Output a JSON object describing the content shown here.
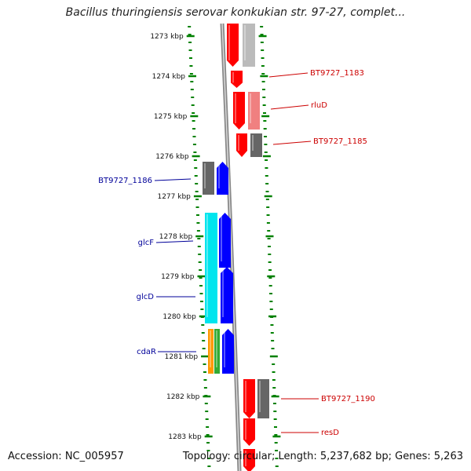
{
  "title": "Bacillus thuringiensis serovar konkukian str. 97-27, complet...",
  "accession": "Accession: NC_005957",
  "summary": "Topology: circular; Length: 5,237,682 bp; Genes: 5,263",
  "colors": {
    "forward_gene": "#ff0000",
    "reverse_gene": "#0000ff",
    "hypothetical": "#666666",
    "forward_label": "#cc0000",
    "reverse_label": "#000099",
    "tick": "#008000",
    "chromosome": "#888888"
  },
  "ticks": [
    {
      "kbp": 1273,
      "label": "1273 kbp"
    },
    {
      "kbp": 1274,
      "label": "1274 kbp"
    },
    {
      "kbp": 1275,
      "label": "1275 kbp"
    },
    {
      "kbp": 1276,
      "label": "1276 kbp"
    },
    {
      "kbp": 1277,
      "label": "1277 kbp"
    },
    {
      "kbp": 1278,
      "label": "1278 kbp"
    },
    {
      "kbp": 1279,
      "label": "1279 kbp"
    },
    {
      "kbp": 1280,
      "label": "1280 kbp"
    },
    {
      "kbp": 1281,
      "label": "1281 kbp"
    },
    {
      "kbp": 1282,
      "label": "1282 kbp"
    },
    {
      "kbp": 1283,
      "label": "1283 kbp"
    }
  ],
  "gene_labels": [
    {
      "text": "BT9727_1183",
      "strand": "forward"
    },
    {
      "text": "rluD",
      "strand": "forward"
    },
    {
      "text": "BT9727_1185",
      "strand": "forward"
    },
    {
      "text": "BT9727_1186",
      "strand": "reverse"
    },
    {
      "text": "glcF",
      "strand": "reverse"
    },
    {
      "text": "glcD",
      "strand": "reverse"
    },
    {
      "text": "cdaR",
      "strand": "reverse"
    },
    {
      "text": "BT9727_1190",
      "strand": "forward"
    },
    {
      "text": "resD",
      "strand": "forward"
    }
  ]
}
